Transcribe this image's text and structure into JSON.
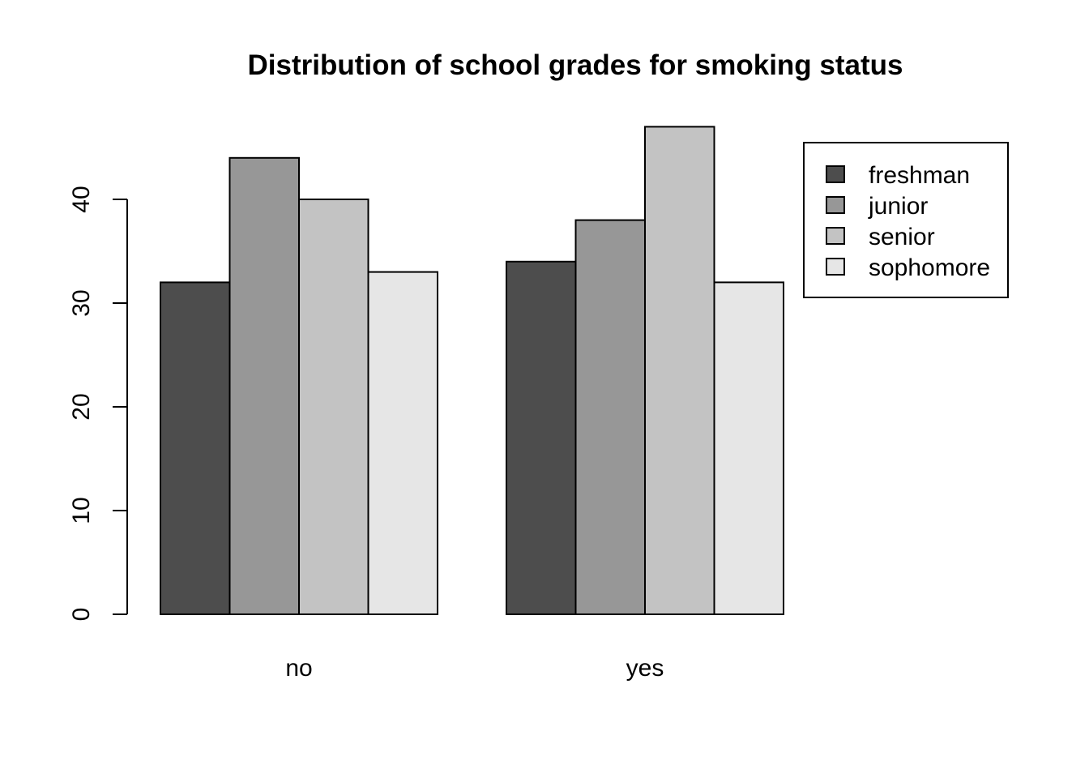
{
  "chart_data": {
    "type": "bar",
    "title": "Distribution of school grades for smoking status",
    "xlabel": "",
    "ylabel": "",
    "categories": [
      "no",
      "yes"
    ],
    "series": [
      {
        "name": "freshman",
        "values": [
          32,
          34
        ],
        "color": "#4d4d4d"
      },
      {
        "name": "junior",
        "values": [
          44,
          38
        ],
        "color": "#979797"
      },
      {
        "name": "senior",
        "values": [
          40,
          47
        ],
        "color": "#c3c3c3"
      },
      {
        "name": "sophomore",
        "values": [
          33,
          32
        ],
        "color": "#e6e6e6"
      }
    ],
    "yticks": [
      0,
      10,
      20,
      30,
      40
    ],
    "ylim": [
      0,
      47
    ],
    "grid": false,
    "legend_position": "top-right",
    "bar_mode": "grouped"
  }
}
